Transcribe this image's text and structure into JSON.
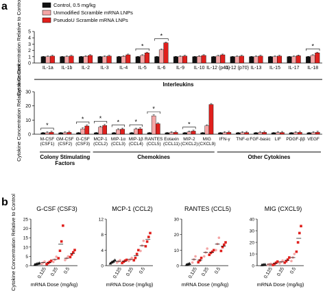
{
  "legend": {
    "items": [
      {
        "label": "Control, 0.5 mg/kg",
        "color": "#111111"
      },
      {
        "label": "Unmodified Scramble mRNA LNPs",
        "color": "#f4a6a6"
      },
      {
        "label": "PseudoU Scramble mRNA LNPs",
        "color": "#e0201d"
      }
    ]
  },
  "chart_data": [
    {
      "panel": "a",
      "type": "bar",
      "ylabel": "Cytokine Concentration Relative to Control",
      "ylim": [
        0,
        5
      ],
      "yticks": [
        0,
        1,
        2,
        3,
        4,
        5
      ],
      "categories": [
        "IL-1a",
        "IL-1b",
        "IL-2",
        "IL-3",
        "IL-4",
        "IL-5",
        "IL-6",
        "IL-9",
        "IL-10",
        "IL-12 (p40)",
        "IL-12 (p70)",
        "IL-13",
        "IL-15",
        "IL-17",
        "IL-18"
      ],
      "series": [
        {
          "name": "Control, 0.5 mg/kg",
          "values": [
            1,
            1,
            1,
            1,
            1,
            1,
            1,
            1,
            1,
            1,
            1,
            1,
            1,
            1,
            1
          ]
        },
        {
          "name": "Unmodified Scramble mRNA LNPs",
          "values": [
            1.0,
            1.0,
            1.05,
            1.0,
            1.05,
            1.2,
            2.1,
            1.0,
            1.05,
            1.1,
            1.0,
            1.0,
            1.0,
            1.0,
            1.2
          ]
        },
        {
          "name": "PseudoU Scramble mRNA LNPs",
          "values": [
            1.1,
            1.1,
            1.2,
            1.1,
            1.3,
            1.6,
            3.2,
            1.1,
            1.2,
            1.3,
            1.1,
            1.1,
            1.1,
            1.15,
            1.6
          ]
        }
      ],
      "significance": [
        "IL-5",
        "IL-6",
        "IL-18"
      ],
      "group_label": "Interleukins"
    },
    {
      "panel": "a",
      "type": "bar",
      "ylabel": "Cytokine Concentration Relative to Control",
      "ylim": [
        0,
        30
      ],
      "yticks": [
        0,
        10,
        20,
        30
      ],
      "categories": [
        "M-CSF (CSF1)",
        "GM-CSF (CSF2)",
        "G-CSF (CSF3)",
        "MCP-1 (CCL2)",
        "MIP-1α (CCL3)",
        "MIP-1β (CCL4)",
        "RANTES (CCL5)",
        "Eotaxin (CCL11)",
        "MIP-2 (CXCL2)",
        "MIG (CXCL9)",
        "IFN-γ",
        "TNF-α",
        "FGF-basic",
        "LIF",
        "PDGF-ββ",
        "VEGF"
      ],
      "series": [
        {
          "name": "Control, 0.5 mg/kg",
          "values": [
            1,
            1,
            1,
            1,
            1,
            1,
            1,
            1,
            1,
            1,
            1,
            1,
            1,
            1,
            1,
            1
          ]
        },
        {
          "name": "Unmodified Scramble mRNA LNPs",
          "values": [
            1.0,
            1.0,
            3.8,
            5.0,
            3.2,
            3.6,
            13.0,
            1.1,
            1.6,
            6.0,
            1.1,
            1.1,
            1.2,
            1.1,
            1.1,
            1.1
          ]
        },
        {
          "name": "PseudoU Scramble mRNA LNPs",
          "values": [
            1.4,
            1.3,
            5.8,
            6.2,
            3.6,
            3.8,
            7.4,
            1.3,
            2.2,
            21.0,
            1.3,
            1.2,
            1.3,
            1.2,
            1.3,
            1.4
          ]
        }
      ],
      "significance": [
        "M-CSF (CSF1)",
        "G-CSF (CSF3)",
        "MCP-1 (CCL2)",
        "MIP-1α (CCL3)",
        "MIP-1β (CCL4)",
        "RANTES (CCL5)",
        "MIP-2 (CXCL2)"
      ],
      "groups": [
        {
          "label": "Colony Stimulating Factors",
          "from": 0,
          "to": 2
        },
        {
          "label": "Chemokines",
          "from": 3,
          "to": 9
        },
        {
          "label": "Other Cytokines",
          "from": 10,
          "to": 15
        }
      ]
    },
    {
      "panel": "b",
      "type": "scatter",
      "title": "G-CSF (CSF3)",
      "ylabel": "Cytokine Concentration Relative to Control",
      "xlabel": "mRNA Dose (mg/kg)",
      "categories": [
        "0.125",
        "0.25",
        "0.5"
      ],
      "ylim": [
        0,
        25
      ],
      "yticks": [
        0,
        5,
        10,
        15,
        20,
        25
      ],
      "control": [
        0.6,
        0.9,
        1.1,
        1.3
      ],
      "points": {
        "0.125": {
          "unmodified": [
            1.0,
            1.6,
            2.2
          ],
          "pseudou": [
            0.8,
            1.4,
            2.0,
            2.6
          ]
        },
        "0.25": {
          "unmodified": [
            2.0,
            3.2,
            4.8
          ],
          "pseudou": [
            4.0,
            8.0,
            13.0,
            21.5
          ]
        },
        "0.5": {
          "unmodified": [
            3.0,
            4.0,
            5.0
          ],
          "pseudou": [
            4.6,
            6.0,
            7.2,
            8.4
          ]
        }
      }
    },
    {
      "panel": "b",
      "type": "scatter",
      "title": "MCP-1 (CCL2)",
      "xlabel": "mRNA Dose (mg/kg)",
      "categories": [
        "0.125",
        "0.25",
        "0.5"
      ],
      "ylim": [
        0,
        12
      ],
      "yticks": [
        0,
        4,
        8,
        12
      ],
      "control": [
        0.6,
        0.9,
        1.1,
        1.4
      ],
      "points": {
        "0.125": {
          "unmodified": [
            0.8,
            1.1,
            1.4
          ],
          "pseudou": [
            0.7,
            1.0,
            1.3,
            1.5
          ]
        },
        "0.25": {
          "unmodified": [
            1.2,
            1.6,
            2.0
          ],
          "pseudou": [
            1.4,
            2.0,
            3.0,
            4.0
          ]
        },
        "0.5": {
          "unmodified": [
            3.8,
            5.2,
            6.4
          ],
          "pseudou": [
            5.0,
            6.2,
            7.4,
            8.4
          ]
        }
      }
    },
    {
      "panel": "b",
      "type": "scatter",
      "title": "RANTES (CCL5)",
      "xlabel": "mRNA Dose (mg/kg)",
      "categories": [
        "0.125",
        "0.25",
        "0.5"
      ],
      "ylim": [
        0,
        30
      ],
      "yticks": [
        0,
        10,
        20,
        30
      ],
      "control": [
        0.6,
        1.0,
        1.3
      ],
      "points": {
        "0.125": {
          "unmodified": [
            2.0,
            4.0,
            6.0
          ],
          "pseudou": [
            2.2,
            3.4,
            5.0
          ]
        },
        "0.25": {
          "unmodified": [
            6.0,
            8.5,
            11.0
          ],
          "pseudou": [
            7.0,
            8.2,
            9.0,
            10.0
          ]
        },
        "0.5": {
          "unmodified": [
            10.0,
            14.0,
            18.0
          ],
          "pseudou": [
            9.5,
            12.0,
            13.5,
            15.0
          ]
        }
      }
    },
    {
      "panel": "b",
      "type": "scatter",
      "title": "MIG (CXCL9)",
      "xlabel": "mRNA Dose (mg/kg)",
      "categories": [
        "0.125",
        "0.25",
        "0.5"
      ],
      "ylim": [
        0,
        40
      ],
      "yticks": [
        0,
        10,
        20,
        30,
        40
      ],
      "control": [
        0.6,
        0.8,
        1.0
      ],
      "points": {
        "0.125": {
          "unmodified": [
            0.8,
            1.2,
            1.6
          ],
          "pseudou": [
            0.6,
            1.5,
            2.5,
            3.5
          ]
        },
        "0.25": {
          "unmodified": [
            2.0,
            3.2,
            4.4
          ],
          "pseudou": [
            2.6,
            3.8,
            5.2,
            7.0
          ]
        },
        "0.5": {
          "unmodified": [
            4.0,
            7.0,
            10.0
          ],
          "pseudou": [
            12.0,
            20.0,
            28.0,
            34.0
          ]
        }
      }
    }
  ],
  "panel_labels": {
    "a": "a",
    "b": "b"
  }
}
